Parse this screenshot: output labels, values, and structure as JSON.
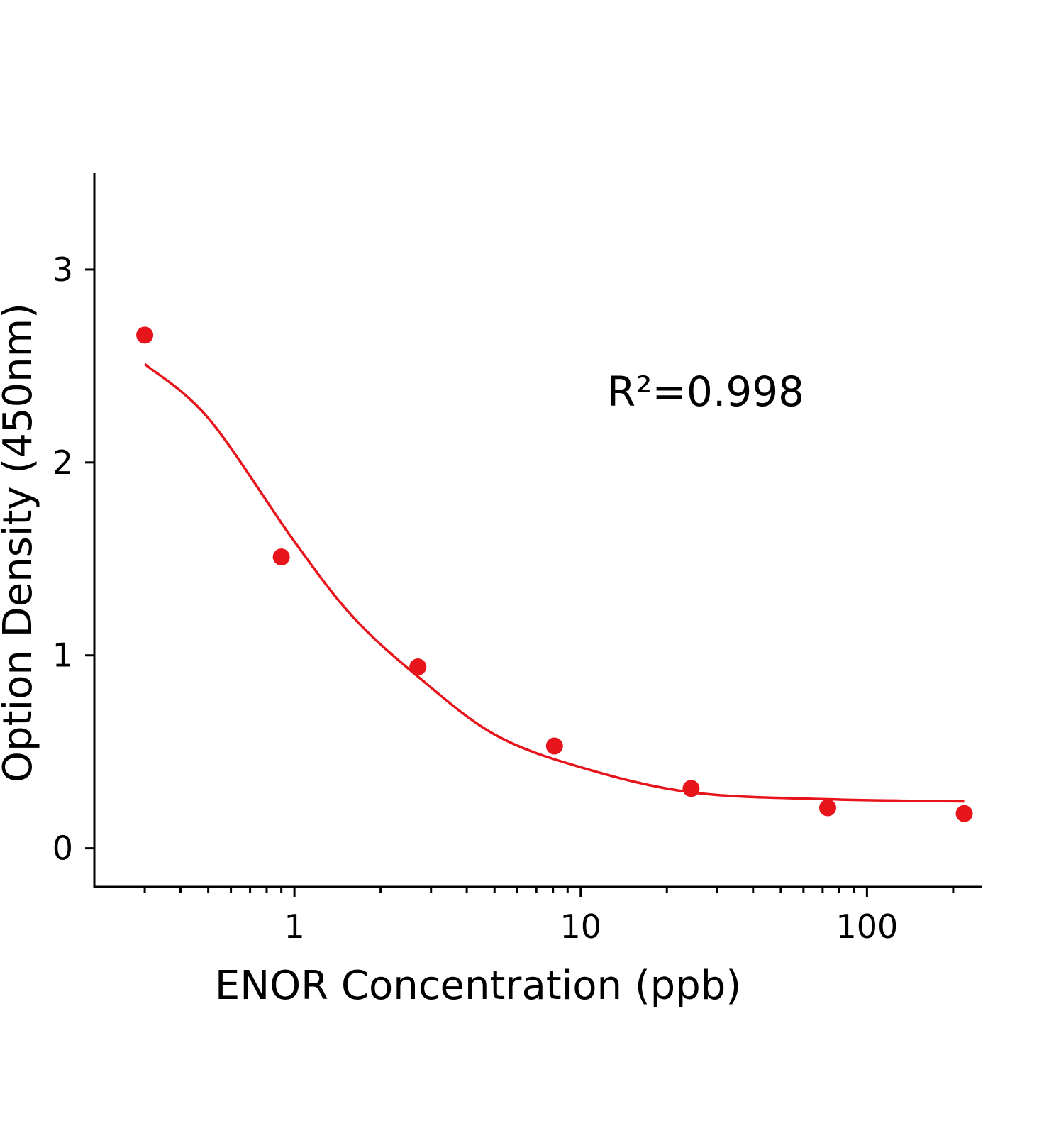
{
  "chart_data": {
    "type": "scatter",
    "xlabel": "ENOR  Concentration  (ppb)",
    "ylabel": "Option Density  (450nm)",
    "annotation": "R²=0.998",
    "xscale": "log",
    "xlim": [
      0.2,
      250
    ],
    "xticks": [
      1,
      10,
      100
    ],
    "xminor_ticks": [
      0.3,
      0.4,
      0.5,
      0.6,
      0.7,
      0.8,
      0.9,
      2,
      3,
      4,
      5,
      6,
      7,
      8,
      9,
      20,
      30,
      40,
      50,
      60,
      70,
      80,
      90,
      200
    ],
    "ylim": [
      -0.2,
      3.5
    ],
    "yticks": [
      0,
      1,
      2,
      3
    ],
    "grid": false,
    "points": {
      "color": "#e8141c",
      "x": [
        0.3,
        0.9,
        2.7,
        8.1,
        24.3,
        72.9,
        218.7
      ],
      "values": [
        2.66,
        1.51,
        0.94,
        0.53,
        0.31,
        0.21,
        0.18
      ]
    },
    "fit": {
      "color": "#e8141c",
      "x": [
        0.3,
        0.5,
        1,
        1.6,
        2.7,
        5,
        10,
        24.3,
        72.9,
        218.7
      ],
      "values": [
        2.51,
        2.23,
        1.59,
        1.2,
        0.89,
        0.59,
        0.42,
        0.29,
        0.254,
        0.243
      ]
    }
  }
}
